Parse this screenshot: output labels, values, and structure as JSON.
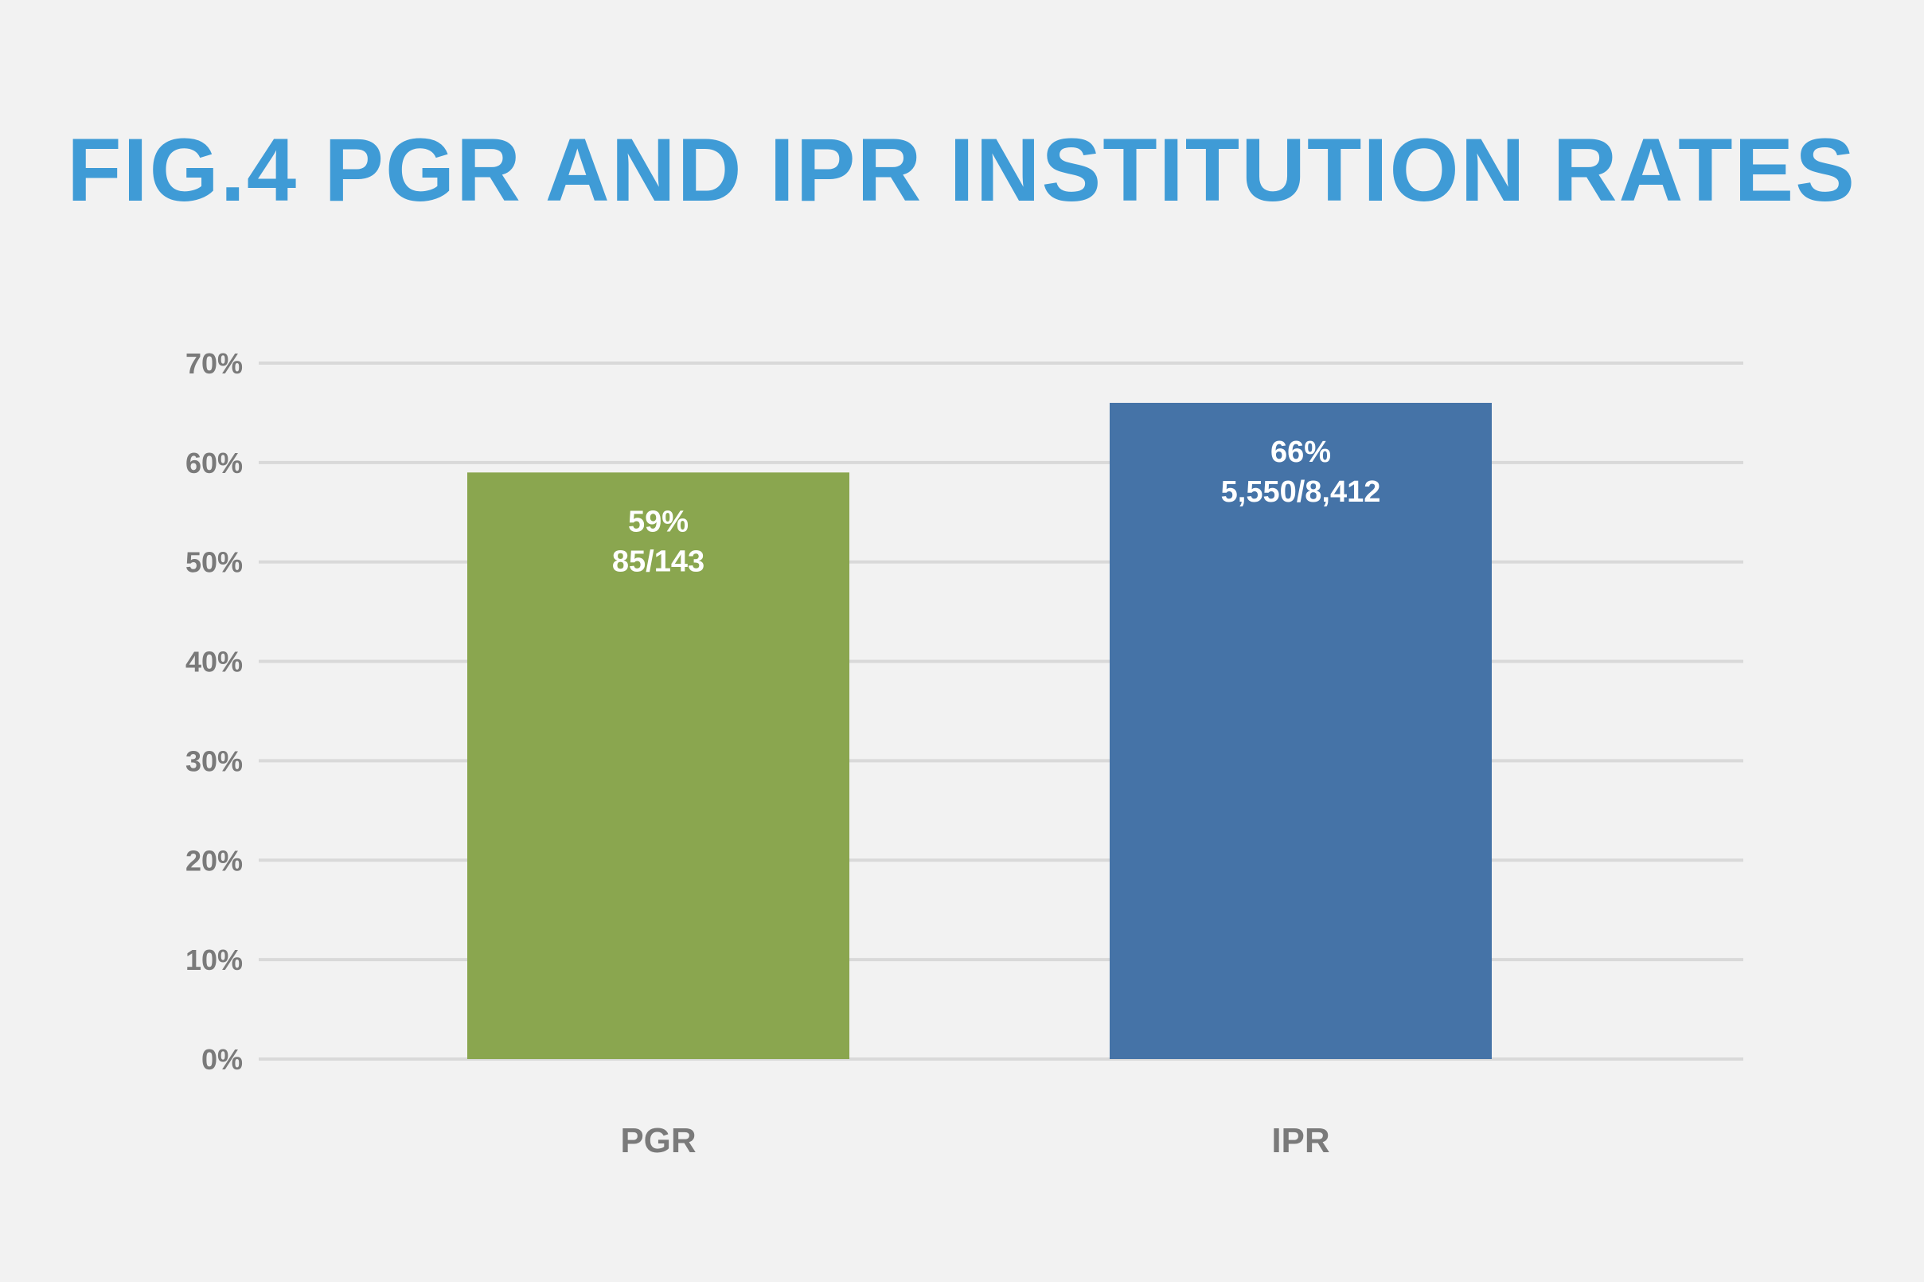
{
  "chart_data": {
    "type": "bar",
    "title": "FIG.4 PGR AND IPR INSTITUTION RATES",
    "categories": [
      "PGR",
      "IPR"
    ],
    "values": [
      59,
      66
    ],
    "data_labels": [
      [
        "59%",
        "85/143"
      ],
      [
        "66%",
        "5,550/8,412"
      ]
    ],
    "bar_colors": [
      "#8aa64f",
      "#4573a7"
    ],
    "title_color": "#3f9bd6",
    "ylim": [
      0,
      70
    ],
    "yticks": [
      0,
      10,
      20,
      30,
      40,
      50,
      60,
      70
    ],
    "ytick_labels": [
      "0%",
      "10%",
      "20%",
      "30%",
      "40%",
      "50%",
      "60%",
      "70%"
    ],
    "grid": true,
    "legend": "none",
    "xlabel": "",
    "ylabel": ""
  }
}
